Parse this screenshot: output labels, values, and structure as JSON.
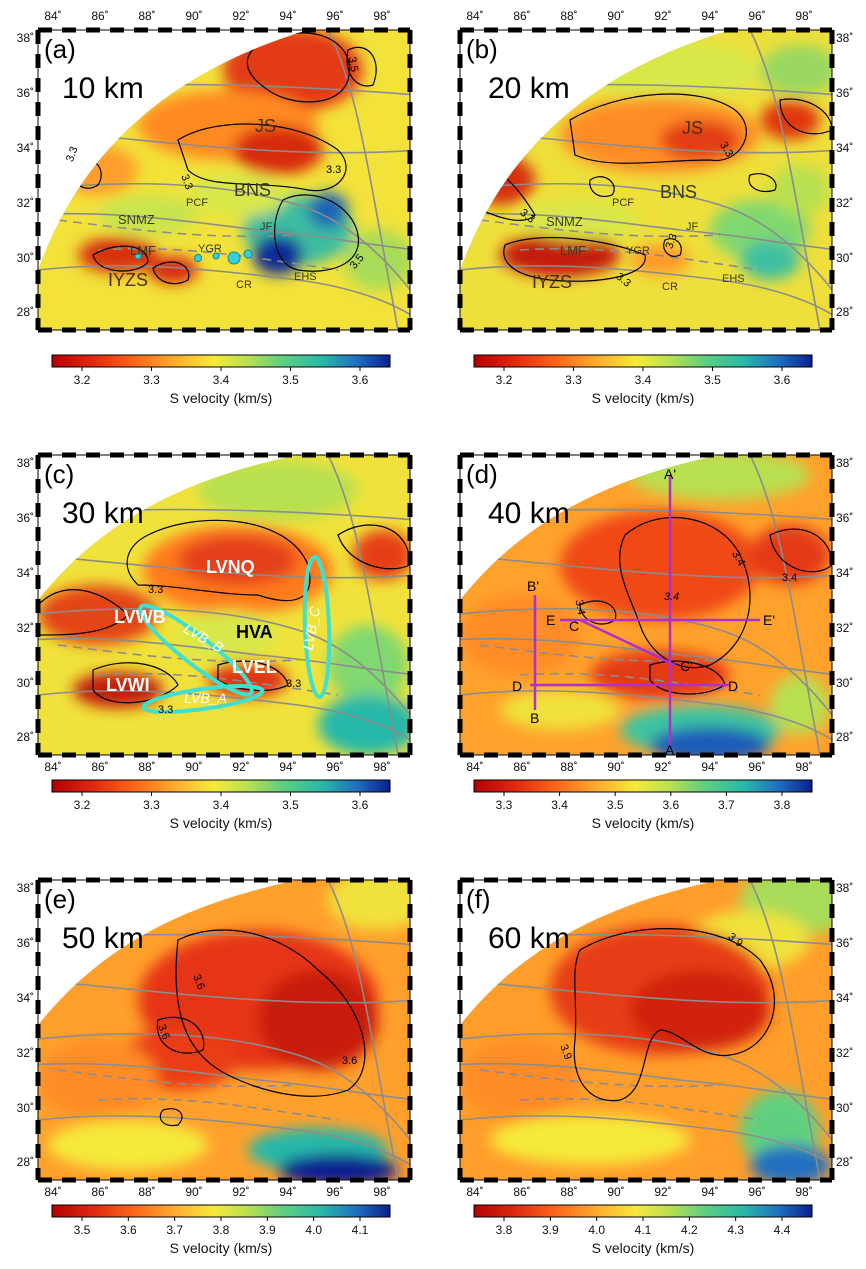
{
  "figure": {
    "lon_ticks": [
      "84˚",
      "86˚",
      "88˚",
      "90˚",
      "92˚",
      "94˚",
      "96˚",
      "98˚"
    ],
    "lat_ticks": [
      "38˚",
      "36˚",
      "34˚",
      "32˚",
      "30˚",
      "28˚"
    ],
    "colors": {
      "ramp": [
        "#b40000",
        "#e02810",
        "#ff6a1a",
        "#ffb030",
        "#f5ea3a",
        "#b8e050",
        "#60d080",
        "#28b8a8",
        "#2070c0",
        "#0b1f90"
      ],
      "fault": "#8c8c8c",
      "major_fault": "#6a6a6a",
      "contour": "#000000",
      "lvb_ellipse": "#40e0d0",
      "profile": "#b030c8"
    },
    "panels": [
      {
        "id": "a",
        "label": "(a)",
        "depth": "10 km",
        "tick_labels": [
          "3.2",
          "3.3",
          "3.4",
          "3.5",
          "3.6"
        ],
        "colorbar_label": "S velocity (km/s)",
        "contour_labels": [
          "3.3",
          "3.3",
          "3.3",
          "3.5",
          "3.5"
        ],
        "annotations": [
          "JS",
          "BNS",
          "SNMZ",
          "PCF",
          "JF",
          "LMF",
          "YGR",
          "IYZS",
          "CR",
          "EHS"
        ]
      },
      {
        "id": "b",
        "label": "(b)",
        "depth": "20 km",
        "tick_labels": [
          "3.2",
          "3.3",
          "3.4",
          "3.5",
          "3.6"
        ],
        "colorbar_label": "S velocity (km/s)",
        "contour_labels": [
          "3.3",
          "3.3",
          "3.3",
          "3.3"
        ],
        "annotations": [
          "JS",
          "BNS",
          "SNMZ",
          "PCF",
          "JF",
          "LMF",
          "YGR",
          "IYZS",
          "CR",
          "EHS"
        ]
      },
      {
        "id": "c",
        "label": "(c)",
        "depth": "30 km",
        "tick_labels": [
          "3.2",
          "3.3",
          "3.4",
          "3.5",
          "3.6"
        ],
        "colorbar_label": "S velocity (km/s)",
        "contour_labels": [
          "3.3",
          "3.3",
          "3.3"
        ],
        "annotations": [
          "LVNQ",
          "LVWB",
          "HVA",
          "LVEL",
          "LVWI",
          "LVB_B",
          "LVB_A",
          "LVB_C"
        ]
      },
      {
        "id": "d",
        "label": "(d)",
        "depth": "40 km",
        "tick_labels": [
          "3.3",
          "3.4",
          "3.5",
          "3.6",
          "3.7",
          "3.8"
        ],
        "colorbar_label": "S velocity (km/s)",
        "contour_labels": [
          "3.4",
          "3.4",
          "3.4",
          "3.4"
        ],
        "profile_labels": [
          "A'",
          "A",
          "B'",
          "B",
          "C",
          "C'",
          "D",
          "D",
          "E",
          "E'"
        ]
      },
      {
        "id": "e",
        "label": "(e)",
        "depth": "50 km",
        "tick_labels": [
          "3.5",
          "3.6",
          "3.7",
          "3.8",
          "3.9",
          "4.0",
          "4.1"
        ],
        "colorbar_label": "S velocity (km/s)",
        "contour_labels": [
          "3.6",
          "3.6",
          "3.6"
        ]
      },
      {
        "id": "f",
        "label": "(f)",
        "depth": "60 km",
        "tick_labels": [
          "3.8",
          "3.9",
          "4.0",
          "4.1",
          "4.2",
          "4.3",
          "4.4"
        ],
        "colorbar_label": "S velocity (km/s)",
        "contour_labels": [
          "3.9",
          "3.9"
        ]
      }
    ]
  }
}
